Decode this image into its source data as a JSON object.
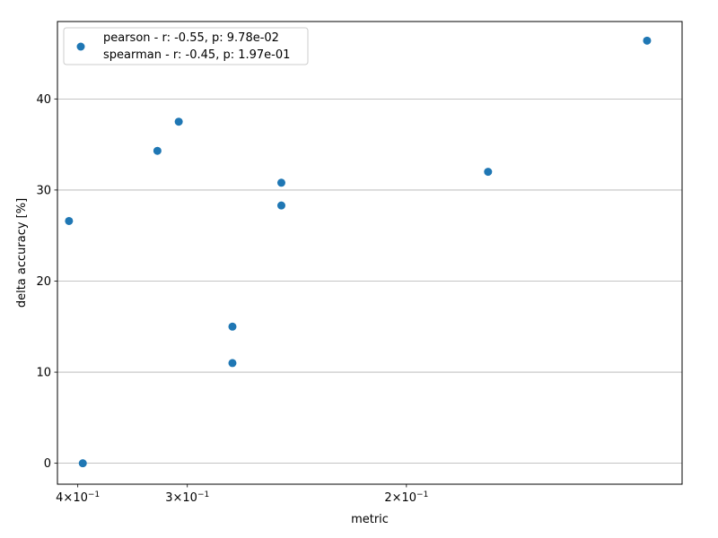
{
  "chart_data": {
    "type": "scatter",
    "title": "",
    "xlabel": "metric",
    "ylabel": "delta accuracy [%]",
    "xscale": "reciprocal",
    "xaxis_direction": "decreasing",
    "xlim": [
      0.4264,
      0.1409
    ],
    "ylim": [
      -2.3,
      48.5
    ],
    "grid": "y-major",
    "legend_position": "top-left",
    "x_ticks": [
      {
        "value": 0.4,
        "base": "4",
        "exp": "-1"
      },
      {
        "value": 0.3,
        "base": "3",
        "exp": "-1"
      },
      {
        "value": 0.2,
        "base": "2",
        "exp": "-1"
      }
    ],
    "y_ticks": [
      0,
      10,
      20,
      30,
      40
    ],
    "series": [
      {
        "legend_lines": [
          "pearson - r: -0.55, p: 9.78e-02",
          "spearman - r: -0.45, p: 1.97e-01"
        ],
        "color": "#1f77b4",
        "points": [
          {
            "x": 0.411,
            "y": 26.6
          },
          {
            "x": 0.394,
            "y": 0.0
          },
          {
            "x": 0.322,
            "y": 34.3
          },
          {
            "x": 0.306,
            "y": 37.5
          },
          {
            "x": 0.272,
            "y": 15.0
          },
          {
            "x": 0.272,
            "y": 11.0
          },
          {
            "x": 0.247,
            "y": 30.8
          },
          {
            "x": 0.247,
            "y": 28.3
          },
          {
            "x": 0.1779,
            "y": 32.0
          },
          {
            "x": 0.1464,
            "y": 46.4
          }
        ]
      }
    ]
  }
}
